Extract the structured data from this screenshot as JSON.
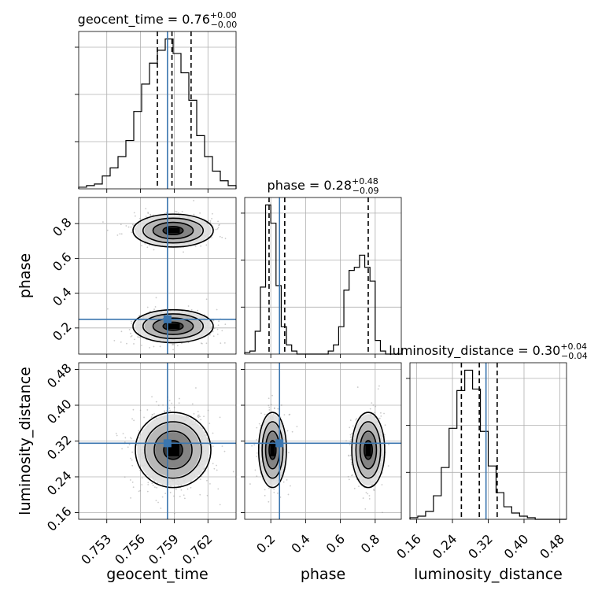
{
  "chart_data": {
    "type": "corner",
    "grid": true,
    "colors": {
      "truth": "#3b76af",
      "hist": "#000000",
      "grid": "#b0b0b0",
      "quantile": "#000000",
      "density": [
        "#dcdcdc",
        "#b0b0b0",
        "#7a7a7a",
        "#2a2a2a"
      ]
    },
    "parameters": [
      {
        "name": "geocent_time",
        "label": "geocent_time",
        "range": [
          0.7505,
          0.7645
        ],
        "ticks": [
          0.753,
          0.756,
          0.759,
          0.762
        ],
        "tick_labels": [
          "0.753",
          "0.756",
          "0.759",
          "0.762"
        ],
        "truth": 0.7584,
        "quantiles": [
          0.7575,
          0.7588,
          0.7605
        ],
        "title": {
          "base": "geocent_time = 0.76",
          "upper": "+0.00",
          "lower": "−0.00"
        },
        "hist": {
          "edges_start": 0.7505,
          "bin_width": 0.0007,
          "counts": [
            0.01,
            0.02,
            0.03,
            0.08,
            0.13,
            0.2,
            0.3,
            0.48,
            0.65,
            0.78,
            0.86,
            0.93,
            0.84,
            0.72,
            0.55,
            0.33,
            0.2,
            0.11,
            0.05,
            0.02
          ]
        }
      },
      {
        "name": "phase",
        "label": "phase",
        "range": [
          0.05,
          0.95
        ],
        "ticks": [
          0.2,
          0.4,
          0.6,
          0.8
        ],
        "tick_labels": [
          "0.2",
          "0.4",
          "0.6",
          "0.8"
        ],
        "truth": 0.25,
        "quantiles": [
          0.19,
          0.28,
          0.76
        ],
        "title": {
          "base": "phase = 0.28",
          "upper": "+0.48",
          "lower": "−0.09"
        },
        "hist": {
          "edges_start": 0.05,
          "bin_width": 0.03,
          "counts": [
            0.01,
            0.02,
            0.15,
            0.44,
            0.98,
            0.86,
            0.45,
            0.18,
            0.06,
            0.02,
            0.0,
            0.0,
            0.0,
            0.0,
            0.0,
            0.0,
            0.02,
            0.06,
            0.18,
            0.42,
            0.55,
            0.57,
            0.65,
            0.57,
            0.48,
            0.09,
            0.02,
            0.0,
            0.0,
            0.0
          ]
        }
      },
      {
        "name": "luminosity_distance",
        "label": "luminosity_distance",
        "range": [
          0.145,
          0.495
        ],
        "ticks": [
          0.16,
          0.24,
          0.32,
          0.4,
          0.48
        ],
        "tick_labels": [
          "0.16",
          "0.24",
          "0.32",
          "0.40",
          "0.48"
        ],
        "truth": 0.315,
        "quantiles": [
          0.26,
          0.3,
          0.34
        ],
        "title": {
          "base": "luminosity_distance = 0.30",
          "upper": "+0.04",
          "lower": "−0.04"
        },
        "hist": {
          "edges_start": 0.145,
          "bin_width": 0.0175,
          "counts": [
            0.01,
            0.02,
            0.05,
            0.15,
            0.33,
            0.58,
            0.82,
            0.95,
            0.83,
            0.56,
            0.34,
            0.17,
            0.08,
            0.04,
            0.02,
            0.01,
            0.0,
            0.0,
            0.0,
            0.0
          ]
        }
      }
    ],
    "density_panels": [
      {
        "x": "geocent_time",
        "y": "phase",
        "modes": [
          {
            "cx": 0.7589,
            "cy": 0.21,
            "sx": 0.0017,
            "sy": 0.045,
            "w": 0.55
          },
          {
            "cx": 0.7589,
            "cy": 0.76,
            "sx": 0.0017,
            "sy": 0.045,
            "w": 0.45
          }
        ]
      },
      {
        "x": "geocent_time",
        "y": "luminosity_distance",
        "modes": [
          {
            "cx": 0.7589,
            "cy": 0.3,
            "sx": 0.0016,
            "sy": 0.04,
            "w": 1.0
          }
        ]
      },
      {
        "x": "phase",
        "y": "luminosity_distance",
        "modes": [
          {
            "cx": 0.21,
            "cy": 0.3,
            "sx": 0.038,
            "sy": 0.04,
            "w": 0.55
          },
          {
            "cx": 0.76,
            "cy": 0.3,
            "sx": 0.045,
            "sy": 0.04,
            "w": 0.45
          }
        ]
      }
    ]
  }
}
